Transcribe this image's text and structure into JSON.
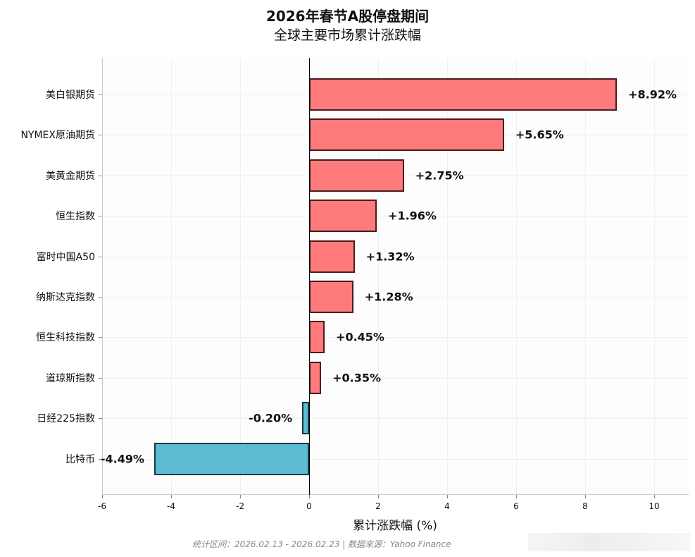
{
  "title": {
    "line1": "2026年春节A股停盘期间",
    "line2": "全球主要市场累计涨跌幅"
  },
  "xaxis": {
    "label": "累计涨跌幅 (%)",
    "ticks": [
      "-6",
      "-4",
      "-2",
      "0",
      "2",
      "4",
      "6",
      "8",
      "10"
    ]
  },
  "footnote": "统计区间：2026.02.13 - 2026.02.23 | 数据来源：Yahoo Finance",
  "colors": {
    "positive": "#ff7b7b",
    "negative": "#5bbcd4"
  },
  "chart_data": {
    "type": "bar",
    "orientation": "horizontal",
    "title": "2026年春节A股停盘期间 全球主要市场累计涨跌幅",
    "xlabel": "累计涨跌幅 (%)",
    "ylabel": "",
    "xlim": [
      -6,
      11
    ],
    "xticks": [
      -6,
      -4,
      -2,
      0,
      2,
      4,
      6,
      8,
      10
    ],
    "grid": true,
    "legend": null,
    "categories": [
      "美白银期货",
      "NYMEX原油期货",
      "美黄金期货",
      "恒生指数",
      "富时中国A50",
      "纳斯达克指数",
      "恒生科技指数",
      "道琼斯指数",
      "日经225指数",
      "比特币"
    ],
    "values": [
      8.92,
      5.65,
      2.75,
      1.96,
      1.32,
      1.28,
      0.45,
      0.35,
      -0.2,
      -4.49
    ],
    "labels": [
      "+8.92%",
      "+5.65%",
      "+2.75%",
      "+1.96%",
      "+1.32%",
      "+1.28%",
      "+0.45%",
      "+0.35%",
      "-0.20%",
      "-4.49%"
    ],
    "footnote": "统计区间：2026.02.13 - 2026.02.23 | 数据来源：Yahoo Finance"
  }
}
